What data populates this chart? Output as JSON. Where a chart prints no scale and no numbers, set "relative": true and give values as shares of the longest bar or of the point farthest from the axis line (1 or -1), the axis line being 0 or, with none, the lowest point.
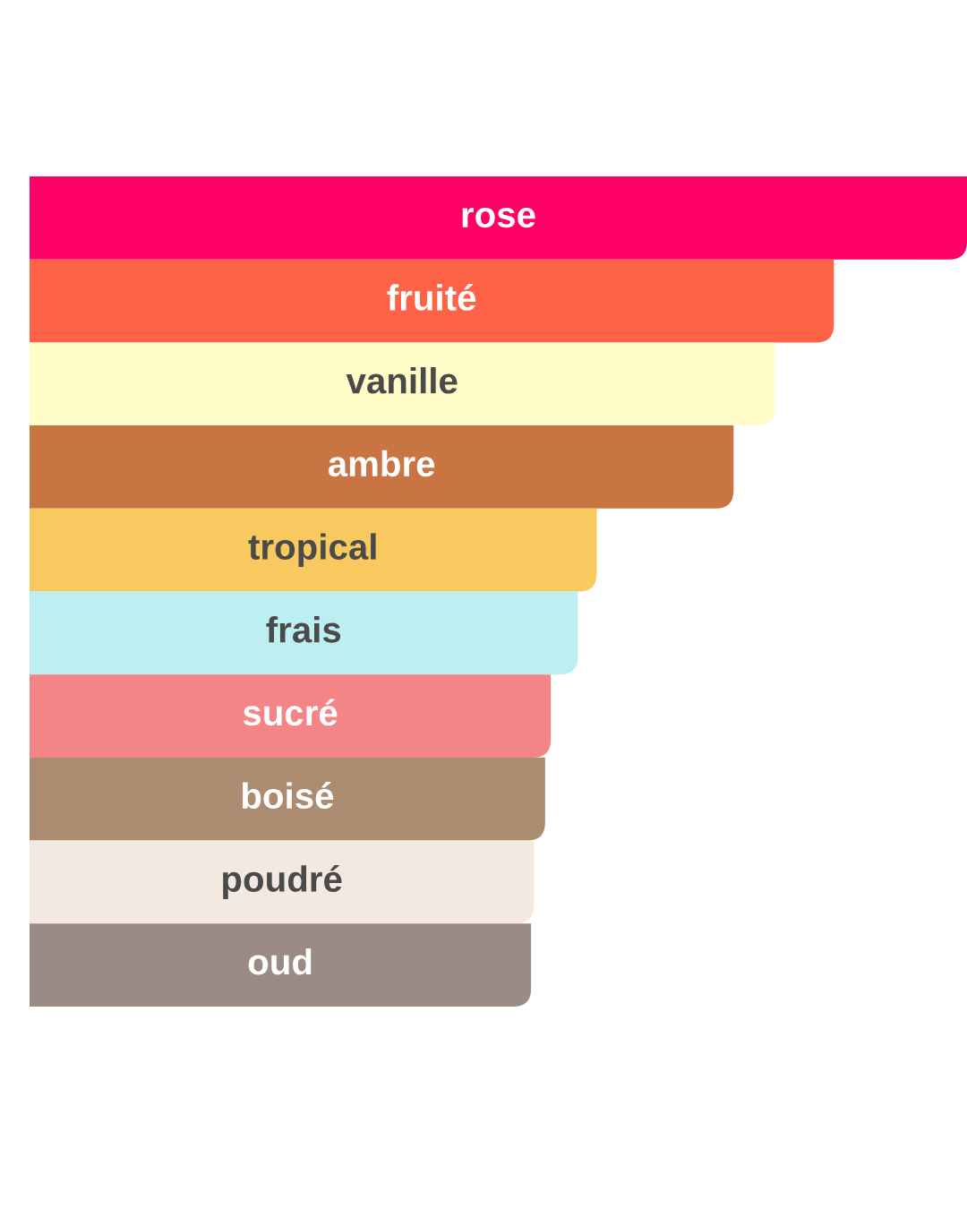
{
  "chart_data": {
    "type": "bar",
    "orientation": "horizontal",
    "relative": true,
    "categories": [
      "rose",
      "fruité",
      "vanille",
      "ambre",
      "tropical",
      "frais",
      "sucré",
      "boisé",
      "poudré",
      "oud"
    ],
    "values": [
      1,
      0.858,
      0.795,
      0.751,
      0.605,
      0.585,
      0.556,
      0.55,
      0.538,
      0.535
    ],
    "colors": [
      "#ff0066",
      "#ff6347",
      "#fffcc8",
      "#c87543",
      "#f7c95f",
      "#bdeef2",
      "#f48587",
      "#ac8c70",
      "#f4e9e0",
      "#9a8c84"
    ]
  }
}
